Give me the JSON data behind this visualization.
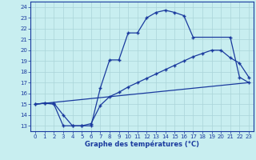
{
  "title": "Graphe des températures (°C)",
  "bg_color": "#c8eef0",
  "grid_color": "#aad4d8",
  "line_color": "#1a3a9e",
  "xlim": [
    -0.5,
    23.5
  ],
  "ylim": [
    12.5,
    24.5
  ],
  "xticks": [
    0,
    1,
    2,
    3,
    4,
    5,
    6,
    7,
    8,
    9,
    10,
    11,
    12,
    13,
    14,
    15,
    16,
    17,
    18,
    19,
    20,
    21,
    22,
    23
  ],
  "yticks": [
    13,
    14,
    15,
    16,
    17,
    18,
    19,
    20,
    21,
    22,
    23,
    24
  ],
  "line1_x": [
    0,
    1,
    2,
    3,
    4,
    5,
    6,
    7,
    8,
    9,
    10,
    11,
    12,
    13,
    14,
    15,
    16,
    17,
    21,
    22,
    23
  ],
  "line1_y": [
    15.0,
    15.1,
    15.0,
    13.0,
    13.0,
    13.0,
    13.0,
    16.5,
    19.1,
    19.1,
    21.6,
    21.6,
    23.0,
    23.5,
    23.7,
    23.5,
    23.2,
    21.2,
    21.2,
    17.5,
    17.0
  ],
  "line2_x": [
    0,
    1,
    2,
    3,
    4,
    5,
    6,
    7,
    8,
    9,
    10,
    11,
    12,
    13,
    14,
    15,
    16,
    17,
    18,
    19,
    20,
    21,
    22,
    23
  ],
  "line2_y": [
    15.0,
    15.1,
    15.1,
    14.0,
    13.0,
    13.0,
    13.2,
    14.9,
    15.7,
    16.1,
    16.6,
    17.0,
    17.4,
    17.8,
    18.2,
    18.6,
    19.0,
    19.4,
    19.7,
    20.0,
    20.0,
    19.3,
    18.8,
    17.5
  ],
  "line3_x": [
    0,
    23
  ],
  "line3_y": [
    15.0,
    17.0
  ]
}
